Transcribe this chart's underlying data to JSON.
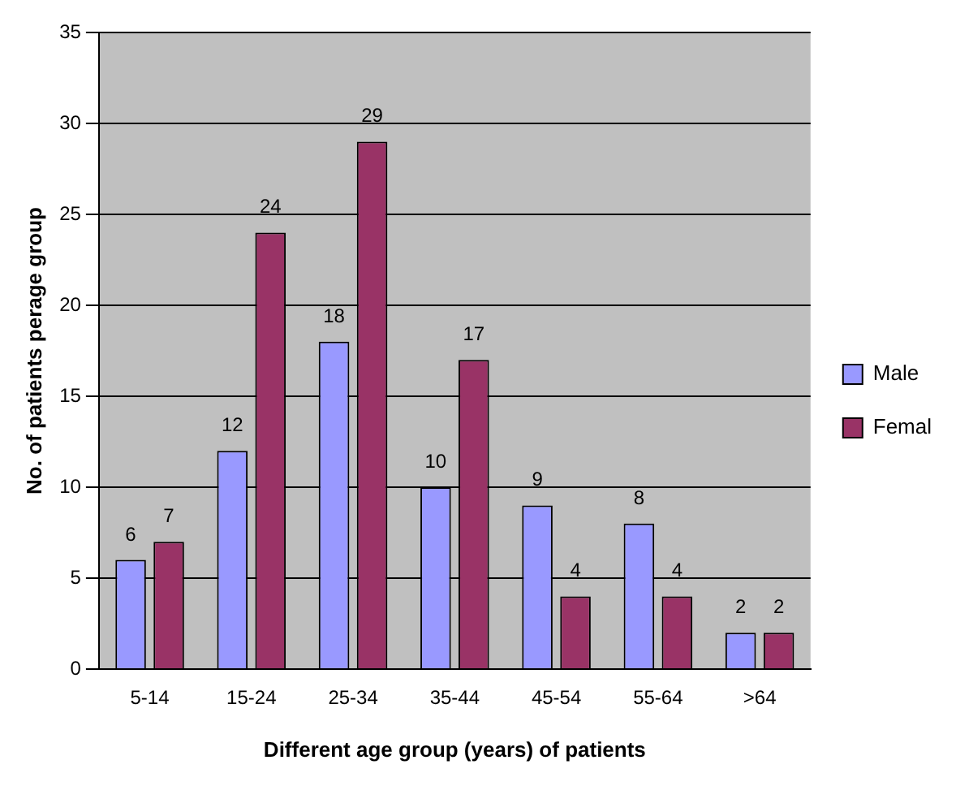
{
  "chart_data": {
    "type": "bar",
    "xlabel": "Different age group (years) of patients",
    "ylabel": "No. of patients perage group",
    "categories": [
      "5-14",
      "15-24",
      "25-34",
      "35-44",
      "45-54",
      "55-64",
      ">64"
    ],
    "series": [
      {
        "name": "Male",
        "color": "#9999ff",
        "values": [
          6,
          12,
          18,
          10,
          9,
          8,
          2
        ]
      },
      {
        "name": "Femal",
        "color": "#993366",
        "values": [
          7,
          24,
          29,
          17,
          4,
          4,
          2
        ]
      }
    ],
    "ylim": [
      0,
      35
    ],
    "yticks": [
      0,
      5,
      10,
      15,
      20,
      25,
      30,
      35
    ],
    "grid": "y",
    "legend": "right",
    "data_labels": true
  }
}
